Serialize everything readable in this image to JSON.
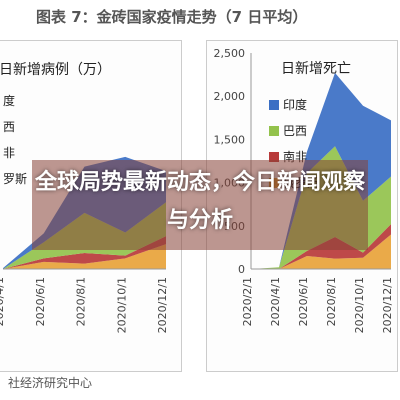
{
  "figure_title": "图表 7：金砖国家疫情走势（7 日平均）",
  "source": "社经济研究中心",
  "overlay_headline": "全球局势最新动态，今日新闻观察与分析",
  "colors": {
    "india": "#3b6fc4",
    "brazil": "#93c24c",
    "south_africa": "#b83a3a",
    "russia": "#e8a33a",
    "overlay": "#874137"
  },
  "chart_data": [
    {
      "type": "area",
      "title": "日新增病例（万）",
      "x": [
        "2020/4/1",
        "2020/6/1",
        "2020/8/1",
        "2020/10/1",
        "2020/12/1"
      ],
      "legend": [
        "度",
        "西",
        "非",
        "罗斯"
      ],
      "series": [
        {
          "key": "russia",
          "values": [
            0.0,
            0.8,
            0.6,
            1.2,
            2.8
          ]
        },
        {
          "key": "south_africa",
          "values": [
            0.0,
            0.4,
            1.2,
            0.3,
            0.9
          ]
        },
        {
          "key": "brazil",
          "values": [
            0.0,
            1.8,
            4.5,
            2.6,
            3.8
          ]
        },
        {
          "key": "india",
          "values": [
            0.1,
            1.0,
            5.2,
            8.5,
            3.5
          ]
        }
      ]
    },
    {
      "type": "area",
      "title": "日新增死亡",
      "x": [
        "2020/2/1",
        "2020/4/1",
        "2020/6/1",
        "2020/8/1",
        "2020/10/1",
        "2020/12/1"
      ],
      "yticks": [
        "2,500",
        "2,000",
        "1,500",
        "1,000",
        "500",
        "0"
      ],
      "ylim": [
        0,
        2500
      ],
      "legend": [
        "印度",
        "巴西",
        "南非",
        "俄罗斯"
      ],
      "series": [
        {
          "key": "russia",
          "values": [
            0,
            0,
            150,
            120,
            130,
            400
          ]
        },
        {
          "key": "south_africa",
          "values": [
            0,
            0,
            60,
            250,
            60,
            120
          ]
        },
        {
          "key": "brazil",
          "values": [
            0,
            20,
            900,
            1050,
            600,
            550
          ]
        },
        {
          "key": "india",
          "values": [
            0,
            0,
            250,
            850,
            1100,
            650
          ]
        }
      ]
    }
  ]
}
